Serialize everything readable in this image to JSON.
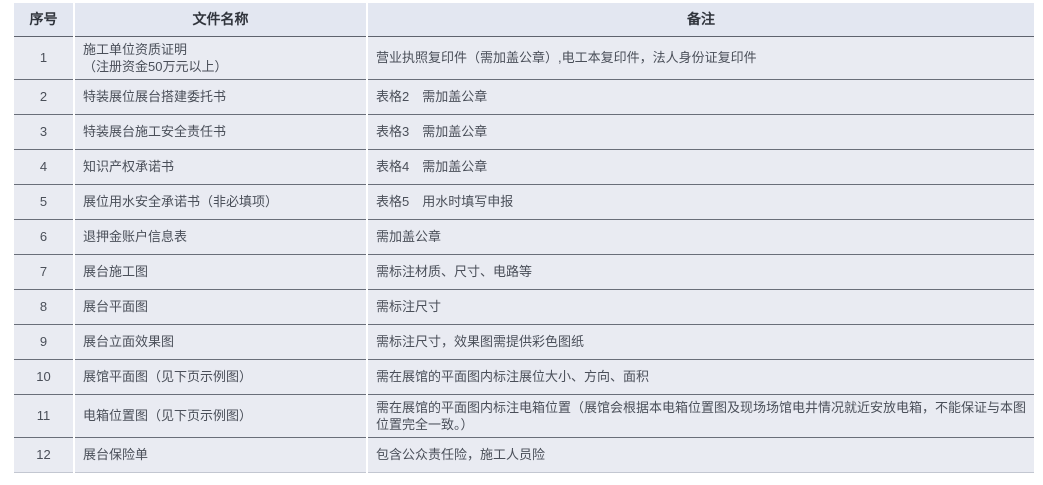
{
  "table": {
    "columns": [
      {
        "key": "index",
        "label": "序号"
      },
      {
        "key": "name",
        "label": "文件名称"
      },
      {
        "key": "remark",
        "label": "备注"
      }
    ],
    "rows": [
      {
        "index": "1",
        "name": "施工单位资质证明\n（注册资金50万元以上）",
        "remark": "营业执照复印件（需加盖公章）,电工本复印件，法人身份证复印件"
      },
      {
        "index": "2",
        "name": "特装展位展台搭建委托书",
        "remark": "表格2　需加盖公章"
      },
      {
        "index": "3",
        "name": "特装展台施工安全责任书",
        "remark": "表格3　需加盖公章"
      },
      {
        "index": "4",
        "name": "知识产权承诺书",
        "remark": "表格4　需加盖公章"
      },
      {
        "index": "5",
        "name": "展位用水安全承诺书（非必填项）",
        "remark": "表格5　用水时填写申报"
      },
      {
        "index": "6",
        "name": "退押金账户信息表",
        "remark": "需加盖公章"
      },
      {
        "index": "7",
        "name": "展台施工图",
        "remark": "需标注材质、尺寸、电路等"
      },
      {
        "index": "8",
        "name": "展台平面图",
        "remark": "需标注尺寸"
      },
      {
        "index": "9",
        "name": "展台立面效果图",
        "remark": "需标注尺寸，效果图需提供彩色图纸"
      },
      {
        "index": "10",
        "name": "展馆平面图（见下页示例图）",
        "remark": "需在展馆的平面图内标注展位大小、方向、面积"
      },
      {
        "index": "11",
        "name": "电箱位置图（见下页示例图）",
        "remark": "需在展馆的平面图内标注电箱位置（展馆会根据本电箱位置图及现场场馆电井情况就近安放电箱，不能保证与本图位置完全一致。）"
      },
      {
        "index": "12",
        "name": "展台保险单",
        "remark": "包含公众责任险，施工人员险"
      }
    ],
    "colors": {
      "header_bg": "#e3e7f1",
      "row_bg": "#e9ebf2",
      "grid_line": "#696e79",
      "column_separator": "#ffffff",
      "header_text": "#30343c",
      "body_text": "#4a4f59"
    }
  }
}
